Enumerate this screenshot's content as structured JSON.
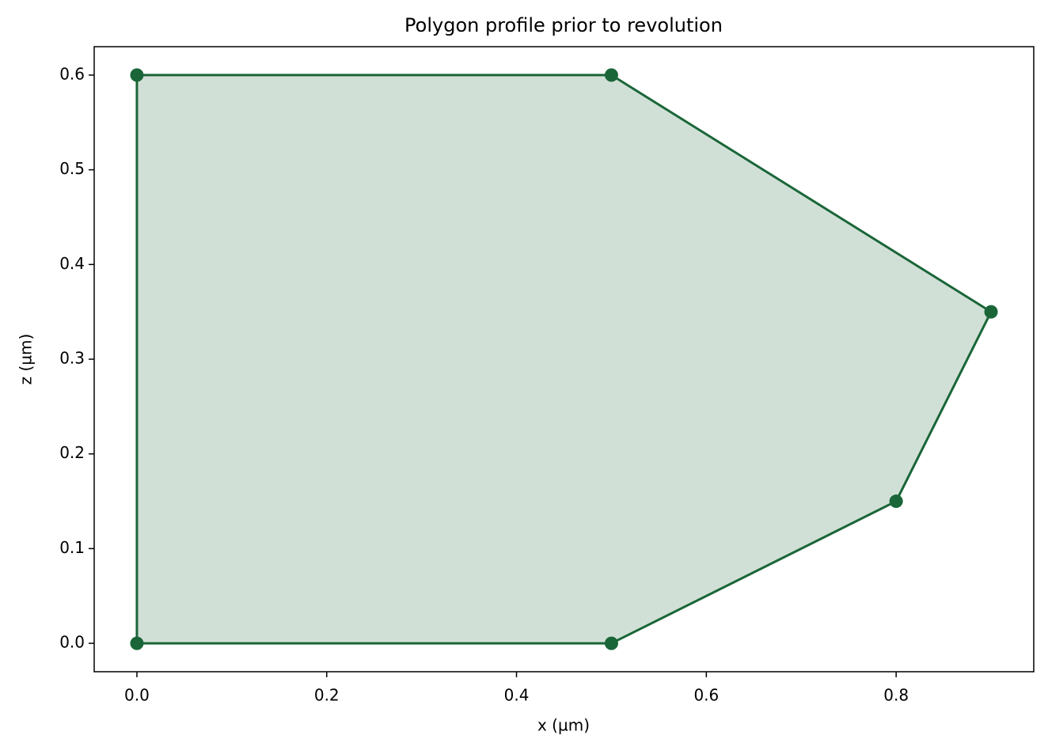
{
  "chart_data": {
    "type": "polygon",
    "title": "Polygon profile prior to revolution",
    "x_label": "x (µm)",
    "y_label": "z (µm)",
    "series": [
      {
        "x": [
          0,
          0.5,
          0.8,
          0.9,
          0.5,
          0
        ],
        "values": [
          0,
          0,
          0.15,
          0.35,
          0.6,
          0.6
        ],
        "color": "#1a6638",
        "fill_opacity": 0.2
      }
    ],
    "xlim": [
      -0.045,
      0.945
    ],
    "ylim": [
      -0.03,
      0.63
    ],
    "xticks": [
      {
        "value": 0,
        "label": "0.0"
      },
      0.2,
      0.4,
      0.6,
      0.8
    ],
    "yticks": [
      {
        "value": 0,
        "label": "0.0"
      },
      0.1,
      0.2,
      0.3,
      0.4,
      0.5,
      0.6
    ],
    "grid": false
  }
}
